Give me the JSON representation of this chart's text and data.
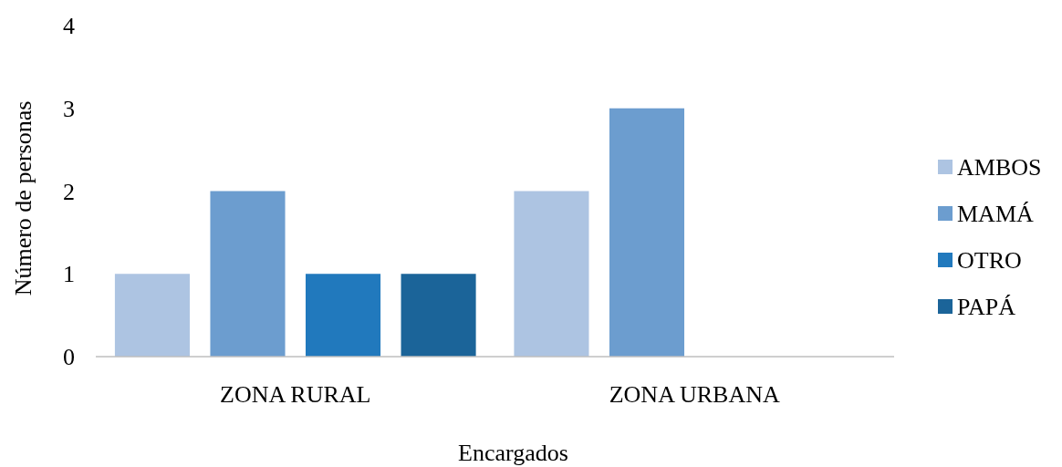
{
  "chart_data": {
    "type": "bar",
    "xlabel": "Encargados",
    "ylabel": "Número de personas",
    "categories": [
      "ZONA RURAL",
      "ZONA URBANA"
    ],
    "series": [
      {
        "name": "AMBOS",
        "color": "#adc4e2",
        "values": [
          1,
          2
        ]
      },
      {
        "name": "MAMÁ",
        "color": "#6c9dcf",
        "values": [
          2,
          3
        ]
      },
      {
        "name": "OTRO",
        "color": "#2179bd",
        "values": [
          1,
          null
        ]
      },
      {
        "name": "PAPÁ",
        "color": "#1b6499",
        "values": [
          1,
          null
        ]
      }
    ],
    "ylim": [
      0,
      4
    ],
    "yticks": [
      0,
      1,
      2,
      3,
      4
    ],
    "grid": false,
    "legend": "right"
  }
}
